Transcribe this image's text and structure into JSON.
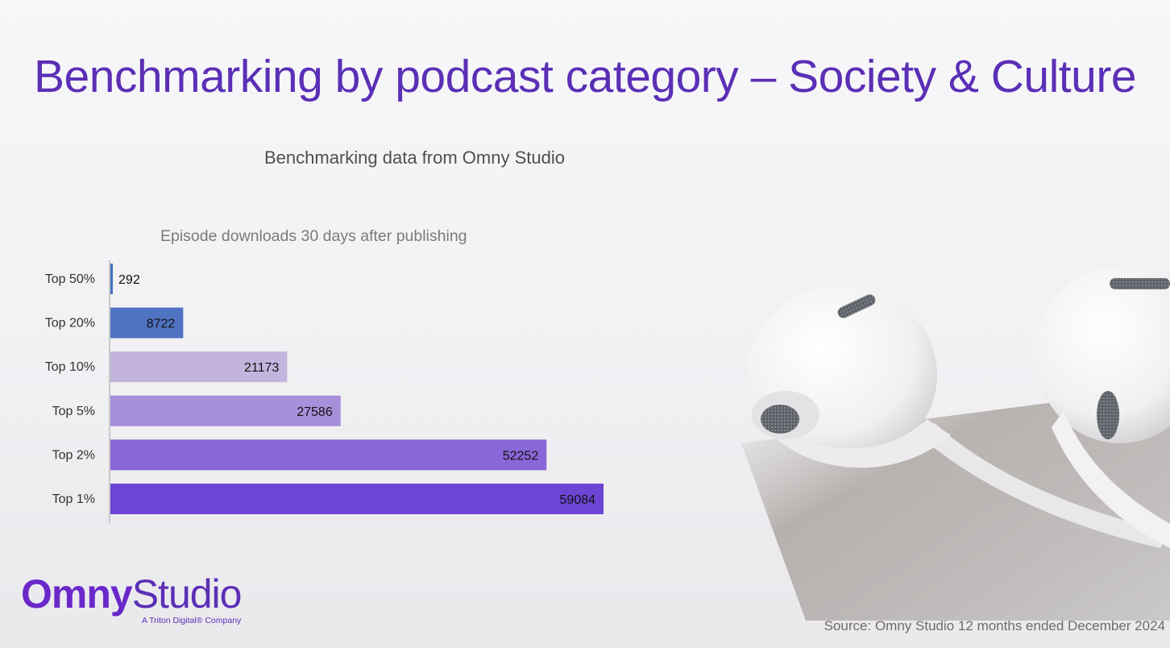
{
  "slide": {
    "title": "Benchmarking by podcast category – Society & Culture",
    "subtitle": "Benchmarking data from Omny Studio",
    "source": "Source:  Omny Studio 12 months ended December 2024"
  },
  "logo": {
    "brand_bold": "Omny",
    "brand_light": "Studio",
    "tagline": "A Triton Digital® Company"
  },
  "chart_data": {
    "type": "bar",
    "orientation": "horizontal",
    "title": "Episode downloads 30 days after publishing",
    "categories": [
      "Top 50%",
      "Top 20%",
      "Top 10%",
      "Top 5%",
      "Top 2%",
      "Top 1%"
    ],
    "values": [
      292,
      8722,
      21173,
      27586,
      52252,
      59084
    ],
    "colors": [
      "#4472c4",
      "#4f73c1",
      "#c2b4dc",
      "#a88fda",
      "#8a67d8",
      "#6c45d5"
    ],
    "xlim": [
      0,
      59084
    ],
    "data_labels": true,
    "grid": false,
    "legend": "none"
  }
}
